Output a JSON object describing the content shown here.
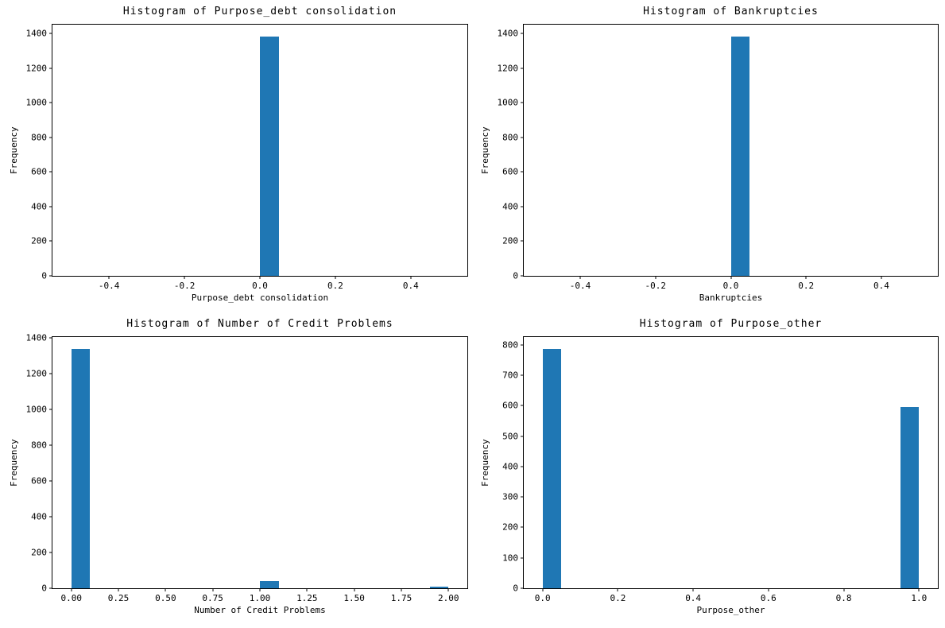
{
  "figure": {
    "background": "#ffffff",
    "bar_color": "#1f77b4",
    "axis_color": "#000000"
  },
  "chart_data": [
    {
      "type": "bar",
      "subtype": "histogram",
      "title": "Histogram of Purpose_debt consolidation",
      "xlabel": "Purpose_debt consolidation",
      "ylabel": "Frequency",
      "xlim": [
        -0.55,
        0.55
      ],
      "ylim": [
        0,
        1452
      ],
      "grid": false,
      "legend": null,
      "xticks": [
        {
          "v": -0.4,
          "label": "-0.4"
        },
        {
          "v": -0.2,
          "label": "-0.2"
        },
        {
          "v": 0.0,
          "label": "0.0"
        },
        {
          "v": 0.2,
          "label": "0.2"
        },
        {
          "v": 0.4,
          "label": "0.4"
        }
      ],
      "yticks": [
        {
          "v": 0,
          "label": "0"
        },
        {
          "v": 200,
          "label": "200"
        },
        {
          "v": 400,
          "label": "400"
        },
        {
          "v": 600,
          "label": "600"
        },
        {
          "v": 800,
          "label": "800"
        },
        {
          "v": 1000,
          "label": "1000"
        },
        {
          "v": 1200,
          "label": "1200"
        },
        {
          "v": 1400,
          "label": "1400"
        }
      ],
      "bars": [
        {
          "x0": 0.0,
          "x1": 0.05,
          "count": 1383
        }
      ]
    },
    {
      "type": "bar",
      "subtype": "histogram",
      "title": "Histogram of Bankruptcies",
      "xlabel": "Bankruptcies",
      "ylabel": "Frequency",
      "xlim": [
        -0.55,
        0.55
      ],
      "ylim": [
        0,
        1452
      ],
      "grid": false,
      "legend": null,
      "xticks": [
        {
          "v": -0.4,
          "label": "-0.4"
        },
        {
          "v": -0.2,
          "label": "-0.2"
        },
        {
          "v": 0.0,
          "label": "0.0"
        },
        {
          "v": 0.2,
          "label": "0.2"
        },
        {
          "v": 0.4,
          "label": "0.4"
        }
      ],
      "yticks": [
        {
          "v": 0,
          "label": "0"
        },
        {
          "v": 200,
          "label": "200"
        },
        {
          "v": 400,
          "label": "400"
        },
        {
          "v": 600,
          "label": "600"
        },
        {
          "v": 800,
          "label": "800"
        },
        {
          "v": 1000,
          "label": "1000"
        },
        {
          "v": 1200,
          "label": "1200"
        },
        {
          "v": 1400,
          "label": "1400"
        }
      ],
      "bars": [
        {
          "x0": 0.0,
          "x1": 0.05,
          "count": 1383
        }
      ]
    },
    {
      "type": "bar",
      "subtype": "histogram",
      "title": "Histogram of Number of Credit Problems",
      "xlabel": "Number of Credit Problems",
      "ylabel": "Frequency",
      "xlim": [
        -0.1,
        2.1
      ],
      "ylim": [
        0,
        1405
      ],
      "grid": false,
      "legend": null,
      "xticks": [
        {
          "v": 0.0,
          "label": "0.00"
        },
        {
          "v": 0.25,
          "label": "0.25"
        },
        {
          "v": 0.5,
          "label": "0.50"
        },
        {
          "v": 0.75,
          "label": "0.75"
        },
        {
          "v": 1.0,
          "label": "1.00"
        },
        {
          "v": 1.25,
          "label": "1.25"
        },
        {
          "v": 1.5,
          "label": "1.50"
        },
        {
          "v": 1.75,
          "label": "1.75"
        },
        {
          "v": 2.0,
          "label": "2.00"
        }
      ],
      "yticks": [
        {
          "v": 0,
          "label": "0"
        },
        {
          "v": 200,
          "label": "200"
        },
        {
          "v": 400,
          "label": "400"
        },
        {
          "v": 600,
          "label": "600"
        },
        {
          "v": 800,
          "label": "800"
        },
        {
          "v": 1000,
          "label": "1000"
        },
        {
          "v": 1200,
          "label": "1200"
        },
        {
          "v": 1400,
          "label": "1400"
        }
      ],
      "bars": [
        {
          "x0": 0.0,
          "x1": 0.1,
          "count": 1338
        },
        {
          "x0": 1.0,
          "x1": 1.1,
          "count": 40
        },
        {
          "x0": 1.9,
          "x1": 2.0,
          "count": 7
        }
      ]
    },
    {
      "type": "bar",
      "subtype": "histogram",
      "title": "Histogram of Purpose_other",
      "xlabel": "Purpose_other",
      "ylabel": "Frequency",
      "xlim": [
        -0.05,
        1.05
      ],
      "ylim": [
        0,
        826
      ],
      "grid": false,
      "legend": null,
      "xticks": [
        {
          "v": 0.0,
          "label": "0.0"
        },
        {
          "v": 0.2,
          "label": "0.2"
        },
        {
          "v": 0.4,
          "label": "0.4"
        },
        {
          "v": 0.6,
          "label": "0.6"
        },
        {
          "v": 0.8,
          "label": "0.8"
        },
        {
          "v": 1.0,
          "label": "1.0"
        }
      ],
      "yticks": [
        {
          "v": 0,
          "label": "0"
        },
        {
          "v": 100,
          "label": "100"
        },
        {
          "v": 200,
          "label": "200"
        },
        {
          "v": 300,
          "label": "300"
        },
        {
          "v": 400,
          "label": "400"
        },
        {
          "v": 500,
          "label": "500"
        },
        {
          "v": 600,
          "label": "600"
        },
        {
          "v": 700,
          "label": "700"
        },
        {
          "v": 800,
          "label": "800"
        }
      ],
      "bars": [
        {
          "x0": 0.0,
          "x1": 0.05,
          "count": 787
        },
        {
          "x0": 0.95,
          "x1": 1.0,
          "count": 595
        }
      ]
    }
  ]
}
